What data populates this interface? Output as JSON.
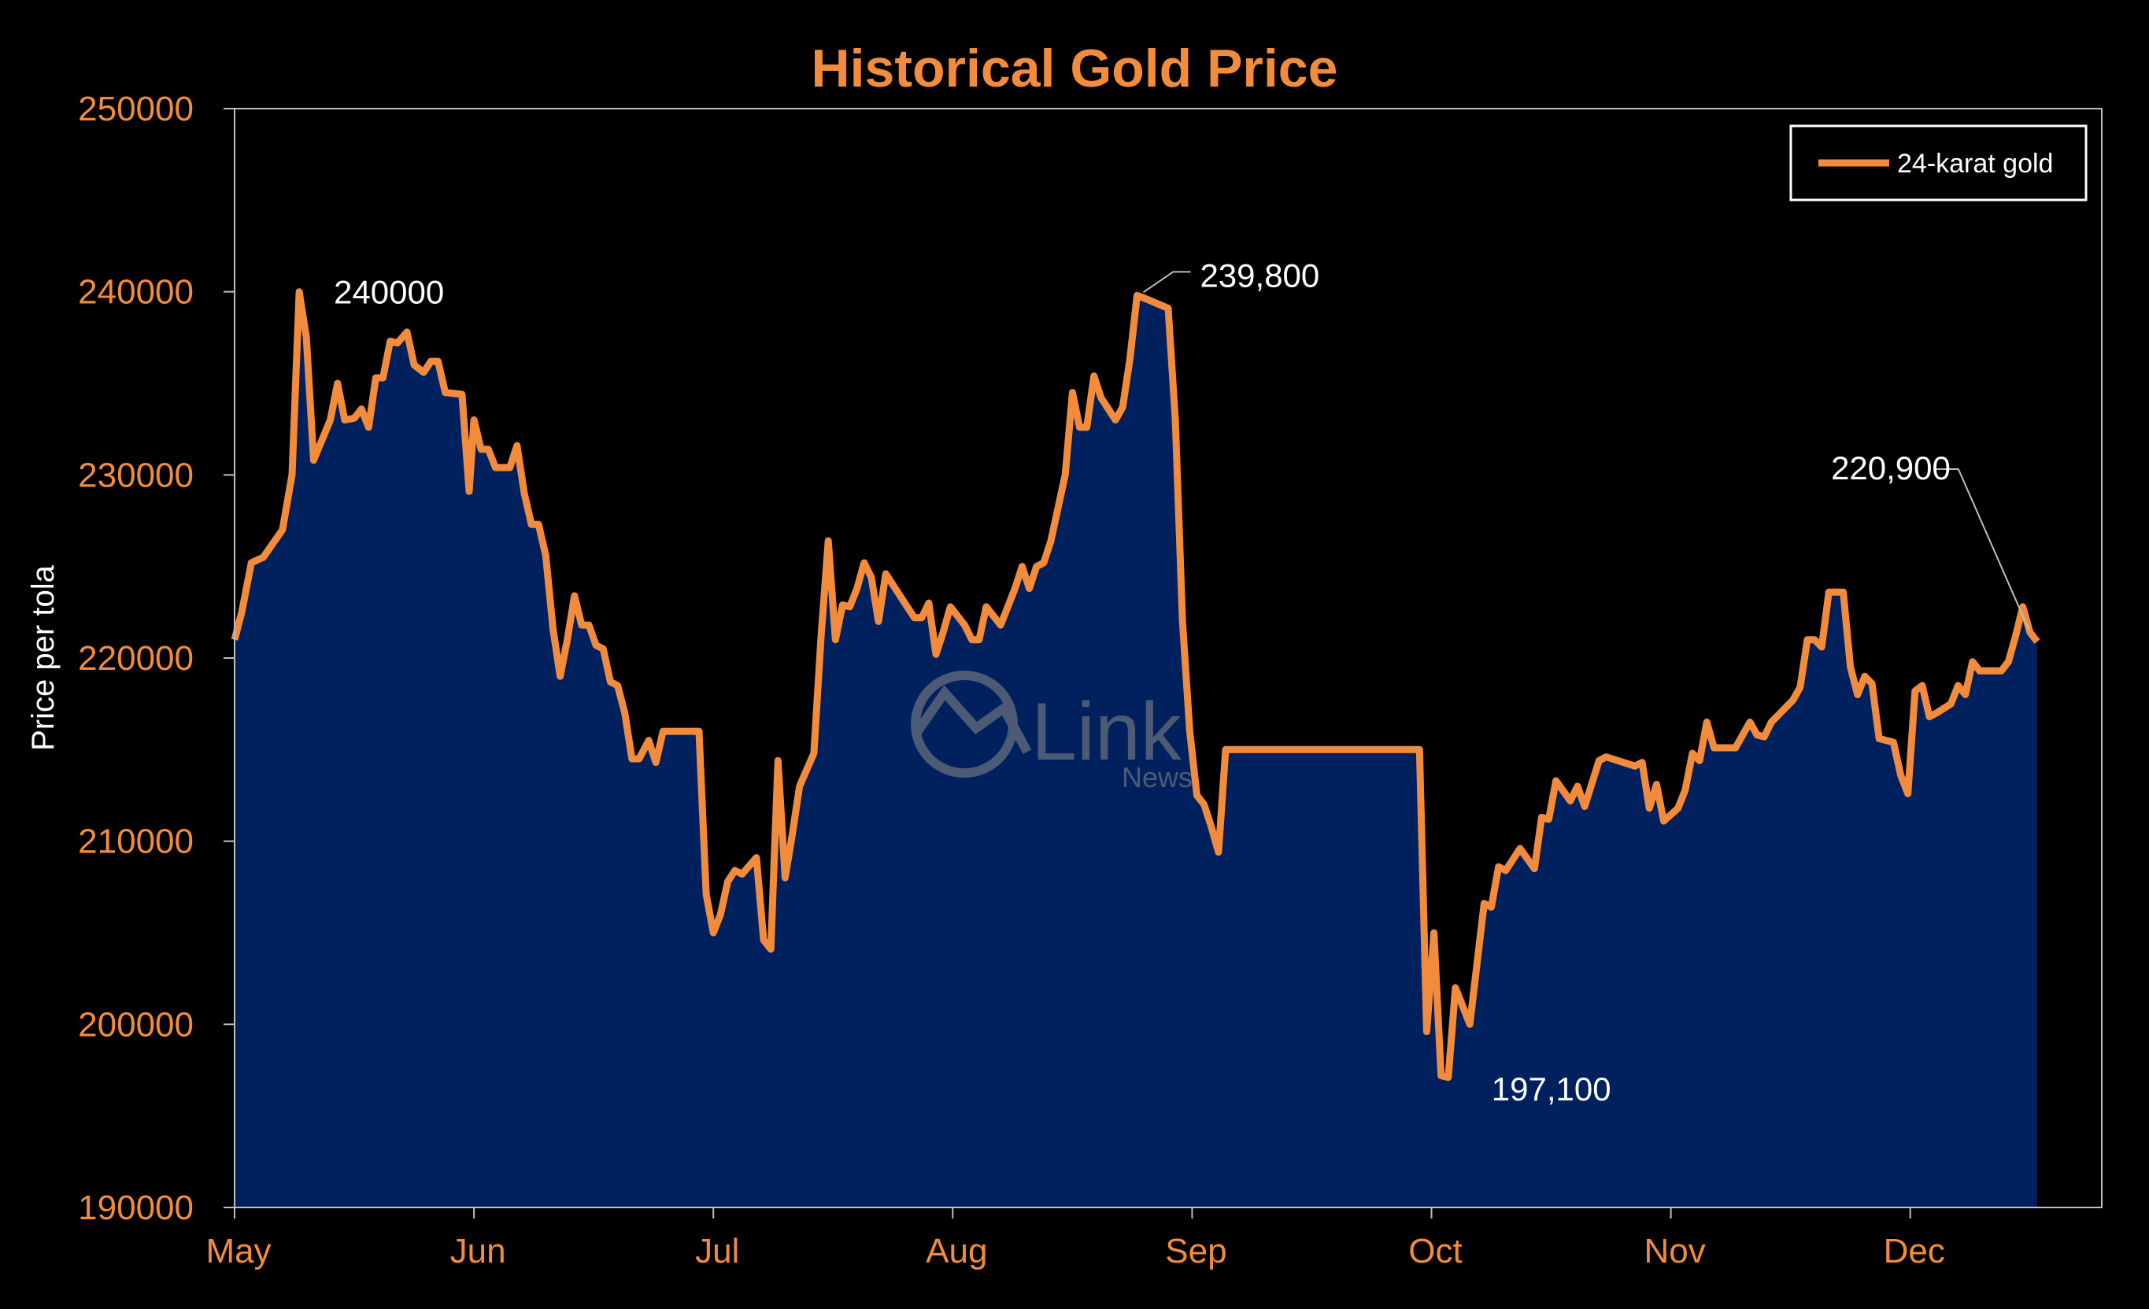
{
  "chart_data": {
    "type": "area",
    "title": "Historical Gold Price",
    "ylabel": "Price per tola",
    "xlabel": "",
    "ylim": [
      190000,
      250000
    ],
    "yticks": [
      190000,
      200000,
      210000,
      220000,
      230000,
      240000,
      250000
    ],
    "ytick_labels": [
      "190000",
      "200000",
      "210000",
      "220000",
      "230000",
      "240000",
      "250000"
    ],
    "xlim": [
      0,
      7.8
    ],
    "xticks": [
      0,
      1,
      2,
      3,
      4,
      5,
      6,
      7
    ],
    "xtick_labels": [
      "May",
      "Jun",
      "Jul",
      "Aug",
      "Sep",
      "Oct",
      "Nov",
      "Dec"
    ],
    "grid": false,
    "legend_position": "top-right",
    "colors": {
      "line": "#f28c3c",
      "fill": "#00215e",
      "background": "#000000",
      "axis": "#bfbfbf"
    },
    "series": [
      {
        "name": "24-karat gold",
        "points": [
          [
            0.0,
            221000
          ],
          [
            0.03,
            222500
          ],
          [
            0.07,
            225200
          ],
          [
            0.12,
            225500
          ],
          [
            0.2,
            227000
          ],
          [
            0.24,
            230000
          ],
          [
            0.27,
            240000
          ],
          [
            0.3,
            237500
          ],
          [
            0.33,
            230800
          ],
          [
            0.4,
            233000
          ],
          [
            0.43,
            235000
          ],
          [
            0.46,
            233000
          ],
          [
            0.5,
            233100
          ],
          [
            0.53,
            233600
          ],
          [
            0.56,
            232600
          ],
          [
            0.59,
            235300
          ],
          [
            0.62,
            235300
          ],
          [
            0.65,
            237300
          ],
          [
            0.68,
            237200
          ],
          [
            0.72,
            237800
          ],
          [
            0.75,
            236000
          ],
          [
            0.79,
            235600
          ],
          [
            0.82,
            236200
          ],
          [
            0.85,
            236200
          ],
          [
            0.88,
            234500
          ],
          [
            0.95,
            234400
          ],
          [
            0.98,
            229100
          ],
          [
            1.0,
            233000
          ],
          [
            1.03,
            231400
          ],
          [
            1.06,
            231400
          ],
          [
            1.09,
            230400
          ],
          [
            1.15,
            230400
          ],
          [
            1.18,
            231600
          ],
          [
            1.21,
            229000
          ],
          [
            1.24,
            227300
          ],
          [
            1.27,
            227300
          ],
          [
            1.3,
            225600
          ],
          [
            1.33,
            221600
          ],
          [
            1.36,
            219000
          ],
          [
            1.39,
            221000
          ],
          [
            1.42,
            223400
          ],
          [
            1.45,
            221800
          ],
          [
            1.48,
            221800
          ],
          [
            1.51,
            220700
          ],
          [
            1.54,
            220500
          ],
          [
            1.57,
            218700
          ],
          [
            1.6,
            218500
          ],
          [
            1.63,
            217000
          ],
          [
            1.66,
            214500
          ],
          [
            1.69,
            214500
          ],
          [
            1.73,
            215500
          ],
          [
            1.76,
            214300
          ],
          [
            1.79,
            216000
          ],
          [
            1.94,
            216000
          ],
          [
            1.97,
            207100
          ],
          [
            2.0,
            205000
          ],
          [
            2.03,
            206000
          ],
          [
            2.06,
            207800
          ],
          [
            2.09,
            208400
          ],
          [
            2.12,
            208200
          ],
          [
            2.18,
            209100
          ],
          [
            2.21,
            204600
          ],
          [
            2.24,
            204100
          ],
          [
            2.27,
            214400
          ],
          [
            2.3,
            208000
          ],
          [
            2.33,
            210400
          ],
          [
            2.36,
            213000
          ],
          [
            2.42,
            214800
          ],
          [
            2.45,
            221200
          ],
          [
            2.48,
            226400
          ],
          [
            2.51,
            221000
          ],
          [
            2.54,
            222900
          ],
          [
            2.57,
            222800
          ],
          [
            2.6,
            223800
          ],
          [
            2.63,
            225200
          ],
          [
            2.66,
            224400
          ],
          [
            2.69,
            222000
          ],
          [
            2.72,
            224600
          ],
          [
            2.75,
            224000
          ],
          [
            2.78,
            223400
          ],
          [
            2.81,
            222800
          ],
          [
            2.84,
            222200
          ],
          [
            2.87,
            222200
          ],
          [
            2.9,
            223000
          ],
          [
            2.93,
            220200
          ],
          [
            2.96,
            221400
          ],
          [
            2.99,
            222800
          ],
          [
            3.05,
            221800
          ],
          [
            3.08,
            221000
          ],
          [
            3.11,
            221000
          ],
          [
            3.14,
            222800
          ],
          [
            3.17,
            222300
          ],
          [
            3.2,
            221800
          ],
          [
            3.23,
            222800
          ],
          [
            3.26,
            223800
          ],
          [
            3.29,
            225000
          ],
          [
            3.32,
            223800
          ],
          [
            3.35,
            225000
          ],
          [
            3.38,
            225200
          ],
          [
            3.41,
            226400
          ],
          [
            3.44,
            228200
          ],
          [
            3.47,
            230000
          ],
          [
            3.5,
            234500
          ],
          [
            3.53,
            232600
          ],
          [
            3.56,
            232600
          ],
          [
            3.59,
            235400
          ],
          [
            3.62,
            234200
          ],
          [
            3.68,
            233000
          ],
          [
            3.71,
            233700
          ],
          [
            3.74,
            236300
          ],
          [
            3.77,
            239800
          ],
          [
            3.81,
            239600
          ],
          [
            3.9,
            239100
          ],
          [
            3.93,
            233000
          ],
          [
            3.96,
            222000
          ],
          [
            3.99,
            216000
          ],
          [
            4.02,
            212500
          ],
          [
            4.05,
            212000
          ],
          [
            4.08,
            210800
          ],
          [
            4.11,
            209400
          ],
          [
            4.14,
            215000
          ],
          [
            4.95,
            215000
          ],
          [
            4.98,
            199600
          ],
          [
            5.01,
            205000
          ],
          [
            5.04,
            197200
          ],
          [
            5.07,
            197100
          ],
          [
            5.1,
            202000
          ],
          [
            5.16,
            200000
          ],
          [
            5.19,
            203300
          ],
          [
            5.22,
            206600
          ],
          [
            5.25,
            206400
          ],
          [
            5.28,
            208600
          ],
          [
            5.31,
            208400
          ],
          [
            5.37,
            209600
          ],
          [
            5.43,
            208500
          ],
          [
            5.46,
            211300
          ],
          [
            5.49,
            211200
          ],
          [
            5.52,
            213300
          ],
          [
            5.58,
            212200
          ],
          [
            5.61,
            213000
          ],
          [
            5.64,
            211900
          ],
          [
            5.7,
            214400
          ],
          [
            5.73,
            214600
          ],
          [
            5.85,
            214100
          ],
          [
            5.88,
            214300
          ],
          [
            5.91,
            211800
          ],
          [
            5.94,
            213100
          ],
          [
            5.97,
            211100
          ],
          [
            6.03,
            211800
          ],
          [
            6.06,
            212800
          ],
          [
            6.09,
            214800
          ],
          [
            6.12,
            214400
          ],
          [
            6.15,
            216500
          ],
          [
            6.18,
            215100
          ],
          [
            6.27,
            215100
          ],
          [
            6.33,
            216500
          ],
          [
            6.36,
            215800
          ],
          [
            6.39,
            215700
          ],
          [
            6.42,
            216500
          ],
          [
            6.51,
            217700
          ],
          [
            6.54,
            218400
          ],
          [
            6.57,
            221000
          ],
          [
            6.6,
            221000
          ],
          [
            6.63,
            220600
          ],
          [
            6.66,
            223600
          ],
          [
            6.72,
            223600
          ],
          [
            6.75,
            219500
          ],
          [
            6.78,
            218000
          ],
          [
            6.81,
            219000
          ],
          [
            6.84,
            218600
          ],
          [
            6.87,
            215600
          ],
          [
            6.93,
            215400
          ],
          [
            6.96,
            213600
          ],
          [
            6.99,
            212600
          ],
          [
            7.02,
            218200
          ],
          [
            7.05,
            218500
          ],
          [
            7.08,
            216800
          ],
          [
            7.11,
            217000
          ],
          [
            7.17,
            217500
          ],
          [
            7.2,
            218500
          ],
          [
            7.23,
            218000
          ],
          [
            7.26,
            219800
          ],
          [
            7.29,
            219300
          ],
          [
            7.38,
            219300
          ],
          [
            7.41,
            219800
          ],
          [
            7.44,
            221200
          ],
          [
            7.47,
            222800
          ],
          [
            7.5,
            221400
          ],
          [
            7.53,
            220900
          ]
        ]
      }
    ],
    "annotations": [
      {
        "text": "240000",
        "x": 0.27,
        "y": 240000
      },
      {
        "text": "239,800",
        "x": 3.77,
        "y": 239800
      },
      {
        "text": "220,900",
        "x": 7.53,
        "y": 220900
      },
      {
        "text": "197,100",
        "x": 5.07,
        "y": 197100
      }
    ]
  },
  "watermark": {
    "brand": "Link",
    "sub": "News"
  }
}
